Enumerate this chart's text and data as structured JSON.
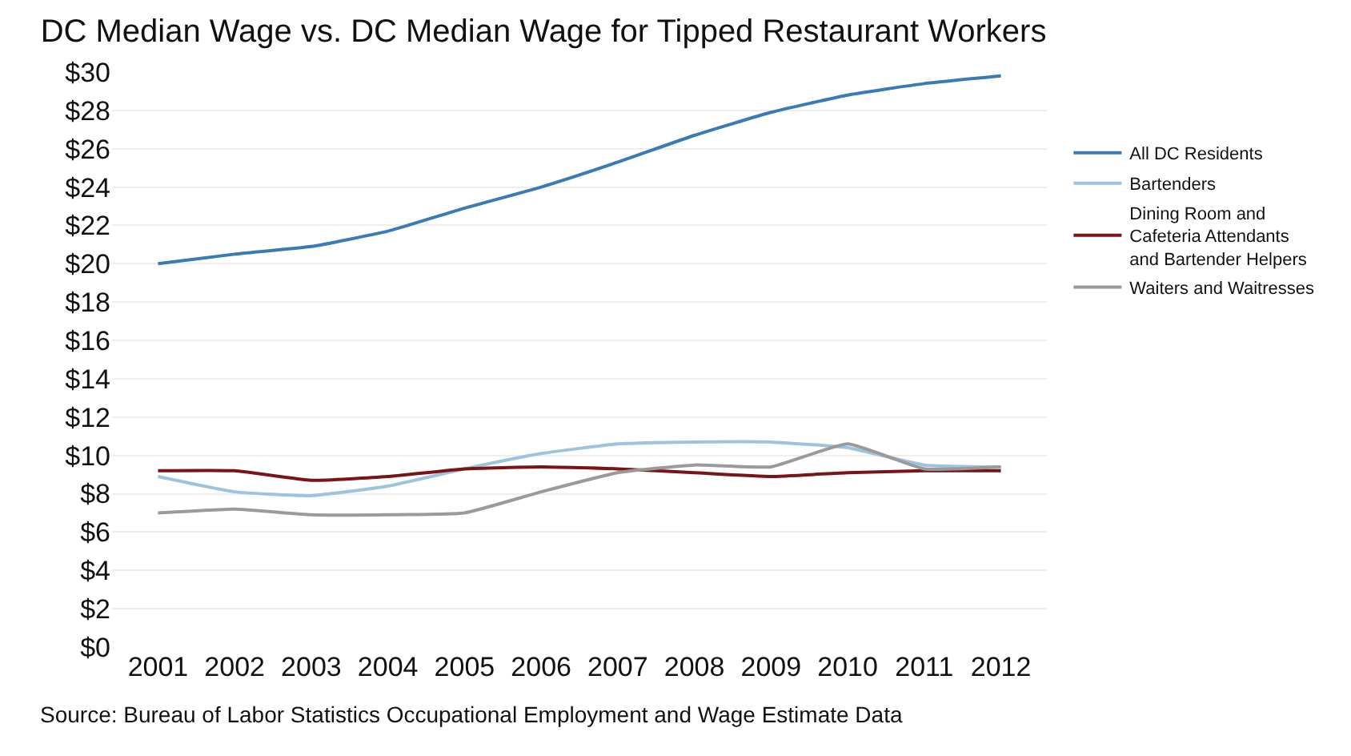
{
  "chart_data": {
    "type": "line",
    "title": "DC Median Wage vs. DC Median Wage for Tipped Restaurant Workers",
    "categories": [
      "2001",
      "2002",
      "2003",
      "2004",
      "2005",
      "2006",
      "2007",
      "2008",
      "2009",
      "2010",
      "2011",
      "2012"
    ],
    "series": [
      {
        "name": "All DC Residents",
        "color": "#3a7ab5",
        "values": [
          20.0,
          20.5,
          20.9,
          21.7,
          22.9,
          24.0,
          25.3,
          26.7,
          27.9,
          28.8,
          29.4,
          29.8
        ]
      },
      {
        "name": "Bartenders",
        "color": "#9ec3de",
        "values": [
          8.9,
          8.1,
          7.9,
          8.4,
          9.3,
          10.1,
          10.6,
          10.7,
          10.7,
          10.4,
          9.5,
          9.4
        ]
      },
      {
        "name": "Dining Room and Cafeteria Attendants and Bartender Helpers",
        "color": "#7a1416",
        "values": [
          9.2,
          9.2,
          8.7,
          8.9,
          9.3,
          9.4,
          9.3,
          9.1,
          8.9,
          9.1,
          9.2,
          9.2
        ]
      },
      {
        "name": "Waiters and Waitresses",
        "color": "#9a9a9a",
        "values": [
          7.0,
          7.2,
          6.9,
          6.9,
          7.0,
          8.1,
          9.1,
          9.5,
          9.4,
          10.6,
          9.3,
          9.4
        ]
      }
    ],
    "ylim": [
      0,
      30
    ],
    "yticks": [
      {
        "value": 0,
        "label": "$0"
      },
      {
        "value": 2,
        "label": "$2"
      },
      {
        "value": 4,
        "label": "$4"
      },
      {
        "value": 6,
        "label": "$6"
      },
      {
        "value": 8,
        "label": "$8"
      },
      {
        "value": 10,
        "label": "$10"
      },
      {
        "value": 12,
        "label": "$12"
      },
      {
        "value": 14,
        "label": "$14"
      },
      {
        "value": 16,
        "label": "$16"
      },
      {
        "value": 18,
        "label": "$18"
      },
      {
        "value": 20,
        "label": "$20"
      },
      {
        "value": 22,
        "label": "$22"
      },
      {
        "value": 24,
        "label": "$24"
      },
      {
        "value": 26,
        "label": "$26"
      },
      {
        "value": 28,
        "label": "$28"
      },
      {
        "value": 30,
        "label": "$30"
      }
    ],
    "grid": "y",
    "legend": "right",
    "marker": "none",
    "line_style": "solid",
    "annotations": [
      "Source: Bureau of Labor Statistics Occupational Employment and Wage Estimate Data"
    ]
  }
}
